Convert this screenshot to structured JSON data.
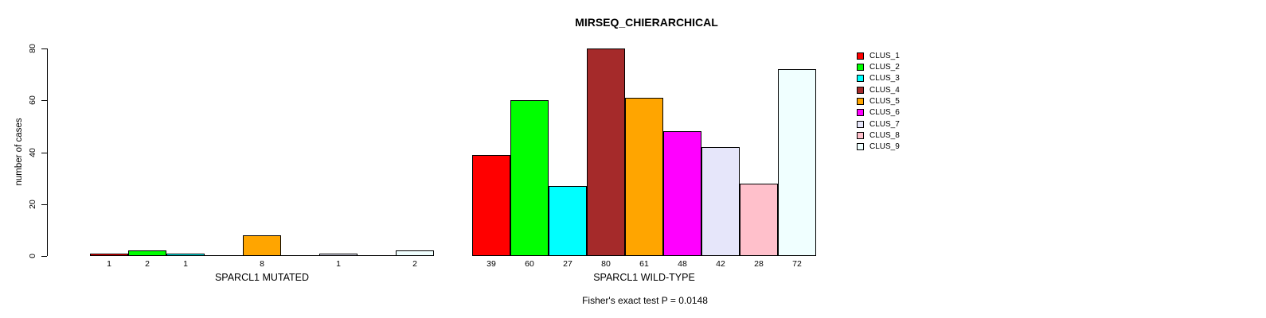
{
  "chart_data": {
    "type": "bar",
    "title": "MIRSEQ_CHIERARCHICAL",
    "ylabel": "number of cases",
    "xlabel": "",
    "ylim": [
      0,
      80
    ],
    "yticks": [
      0,
      20,
      40,
      60,
      80
    ],
    "grid": false,
    "legend_position": "right",
    "series_labels": [
      "CLUS_1",
      "CLUS_2",
      "CLUS_3",
      "CLUS_4",
      "CLUS_5",
      "CLUS_6",
      "CLUS_7",
      "CLUS_8",
      "CLUS_9"
    ],
    "colors": [
      "#FF0000",
      "#00FF00",
      "#00FFFF",
      "#A52A2A",
      "#FFA500",
      "#FF00FF",
      "#E6E6FA",
      "#FFC0CB",
      "#F0FFFF"
    ],
    "groups": [
      {
        "label": "SPARCL1 MUTATED",
        "values": [
          1,
          2,
          1,
          0,
          8,
          0,
          1,
          0,
          2
        ]
      },
      {
        "label": "SPARCL1 WILD-TYPE",
        "values": [
          39,
          60,
          27,
          80,
          61,
          48,
          42,
          28,
          72
        ]
      }
    ],
    "bar_value_labels": [
      [
        "1",
        "2",
        "1",
        "",
        "8",
        "",
        "1",
        "",
        "2"
      ],
      [
        "39",
        "60",
        "27",
        "80",
        "61",
        "48",
        "42",
        "28",
        "72"
      ]
    ],
    "annotation": "Fisher's exact test P = 0.0148"
  }
}
